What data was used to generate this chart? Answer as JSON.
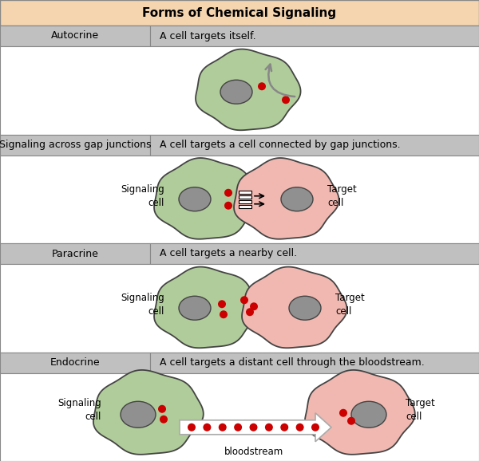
{
  "title": "Forms of Chemical Signaling",
  "title_bg": "#f5d5b0",
  "header_bg": "#c0c0c0",
  "cell_green": "#b0cc9a",
  "cell_pink": "#f0b8b0",
  "nucleus_color": "#909090",
  "dot_color": "#cc0000",
  "sections": [
    {
      "label": "Autocrine",
      "desc": "A cell targets itself."
    },
    {
      "label": "Signaling across gap junctions",
      "desc": "A cell targets a cell connected by gap junctions."
    },
    {
      "label": "Paracrine",
      "desc": "A cell targets a nearby cell."
    },
    {
      "label": "Endocrine",
      "desc": "A cell targets a distant cell through the bloodstream."
    }
  ],
  "fig_w": 6.0,
  "fig_h": 5.78,
  "dpi": 100
}
